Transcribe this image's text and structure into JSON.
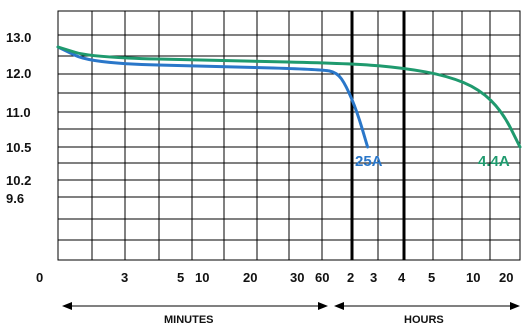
{
  "chart_data": {
    "type": "line",
    "y_ticks": [
      "13.0",
      "12.0",
      "11.0",
      "10.5",
      "10.2",
      "9.6",
      "0"
    ],
    "x_ticks": [
      "3",
      "5",
      "10",
      "20",
      "30",
      "60",
      "2",
      "3",
      "4",
      "5",
      "10",
      "20"
    ],
    "minutes_label": "MINUTES",
    "hours_label": "HOURS",
    "series": [
      {
        "name": "25A",
        "color": "#2a77c9",
        "points": [
          {
            "x_step": 0,
            "y": 12.9
          },
          {
            "x_step": 1,
            "y": 12.35
          },
          {
            "x_step": 5,
            "y": 12.25
          },
          {
            "x_step": 8,
            "y": 12.15
          },
          {
            "x_step": 8.5,
            "y": 12.05
          },
          {
            "x_step": 8.8,
            "y": 11.7
          },
          {
            "x_step": 9.2,
            "y": 11.0
          },
          {
            "x_step": 9.6,
            "y": 10.5
          }
        ]
      },
      {
        "name": "4.4A",
        "color": "#1f9a6e",
        "points": [
          {
            "x_step": 0,
            "y": 12.9
          },
          {
            "x_step": 1,
            "y": 12.55
          },
          {
            "x_step": 5,
            "y": 12.45
          },
          {
            "x_step": 9,
            "y": 12.35
          },
          {
            "x_step": 11,
            "y": 12.2
          },
          {
            "x_step": 12.5,
            "y": 11.95
          },
          {
            "x_step": 13.3,
            "y": 11.6
          },
          {
            "x_step": 13.7,
            "y": 11.0
          },
          {
            "x_step": 14,
            "y": 10.5
          }
        ]
      }
    ],
    "grid": true
  }
}
